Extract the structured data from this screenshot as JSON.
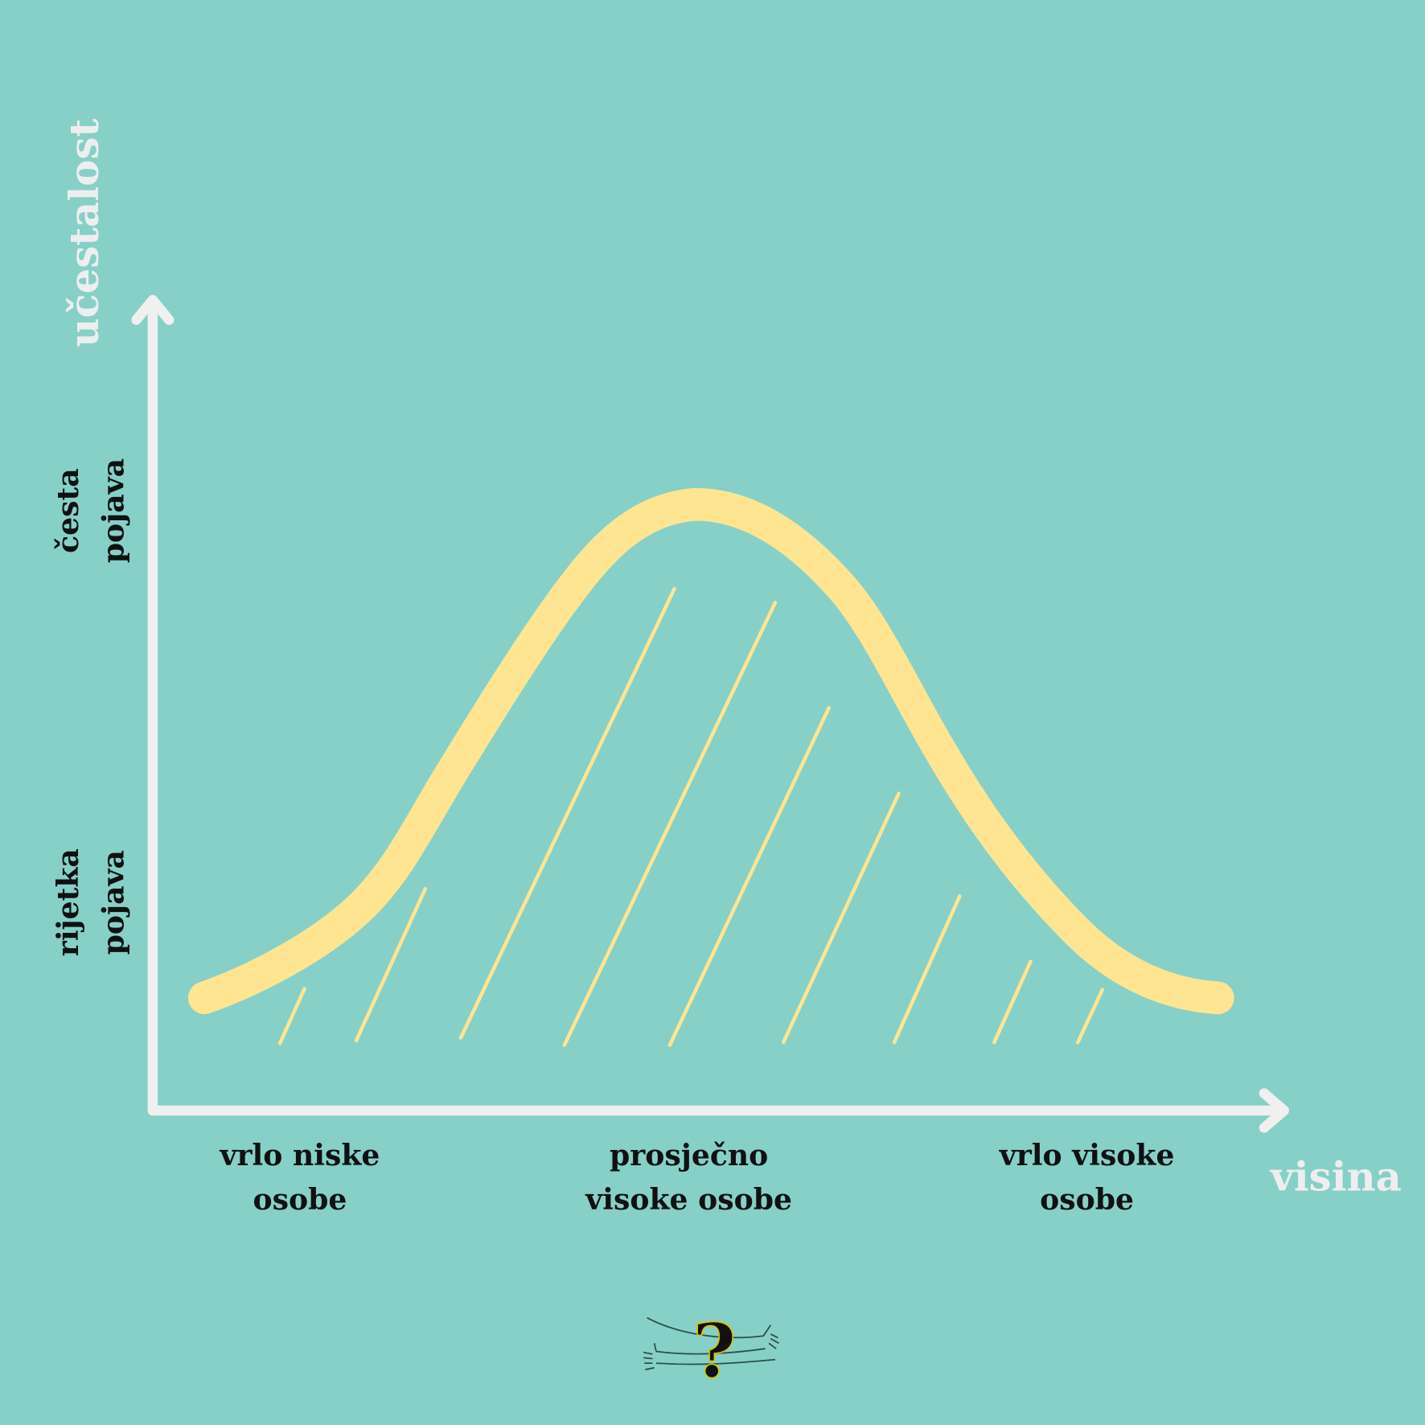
{
  "axes": {
    "y_title": "učestalost",
    "x_title": "visina"
  },
  "y_labels": {
    "high": [
      "česta",
      "pojava"
    ],
    "low": [
      "rijetka",
      "pojava"
    ]
  },
  "x_labels": {
    "left": [
      "vrlo niske",
      "osobe"
    ],
    "middle": [
      "prosječno",
      "visoke osobe"
    ],
    "right": [
      "vrlo visoke",
      "osobe"
    ]
  },
  "colors": {
    "background": "#86D0C8",
    "curve": "#FFE592",
    "axis": "#F0F0F0",
    "label": "#111111"
  },
  "logo": {
    "glyph": "?",
    "icon": "question-mark-with-arms"
  }
}
